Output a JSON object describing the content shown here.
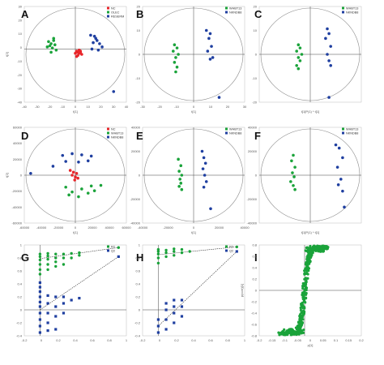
{
  "figure": {
    "layout": "3x3 grid of multivariate plots"
  },
  "colors": {
    "group_red": "#e8262a",
    "group_green": "#1aa33a",
    "group_blue": "#1f3fa0",
    "ellipse": "#888888",
    "axis": "#444444"
  },
  "chart_data": [
    {
      "panel": "A",
      "type": "scatter",
      "ellipse": true,
      "xlim": [
        -40,
        40
      ],
      "ylim": [
        -50,
        40
      ],
      "xticks": [
        "-40",
        "-30",
        "-20",
        "-10",
        "0",
        "10",
        "20",
        "30",
        "40"
      ],
      "yticks": [
        "30",
        "20",
        "10",
        "0",
        "-10",
        "-20",
        "-30",
        "-40"
      ],
      "xlabel": "t[1]",
      "ylabel": "t[2]",
      "legend": [
        {
          "name": "NC",
          "color": "#e8262a"
        },
        {
          "name": "OLEC",
          "color": "#1aa33a"
        },
        {
          "name": "RESERM",
          "color": "#1f3fa0"
        }
      ],
      "series": [
        {
          "name": "NC",
          "color": "#e8262a",
          "x": [
            1,
            2,
            3,
            4,
            5,
            2,
            3,
            0,
            4,
            1
          ],
          "y": [
            -2,
            -3,
            -4,
            -2,
            -5,
            -6,
            -1,
            -4,
            -3,
            -7
          ]
        },
        {
          "name": "OLEC",
          "color": "#1aa33a",
          "x": [
            -21,
            -19,
            -17,
            -20,
            -16,
            -18,
            -15,
            -19,
            -22,
            -17
          ],
          "y": [
            7,
            5,
            8,
            3,
            4,
            1,
            -1,
            -3,
            2,
            10
          ]
        },
        {
          "name": "RESERM",
          "color": "#1f3fa0",
          "x": [
            12,
            15,
            17,
            14,
            19,
            21,
            13,
            18,
            16,
            30
          ],
          "y": [
            13,
            12,
            8,
            6,
            5,
            2,
            0,
            -1,
            10,
            -40
          ]
        }
      ]
    },
    {
      "panel": "B",
      "type": "scatter",
      "ellipse": true,
      "xlim": [
        -40,
        40
      ],
      "ylim": [
        -30,
        30
      ],
      "xticks": [
        "-30",
        "-20",
        "-10",
        "0",
        "10",
        "20",
        "30"
      ],
      "yticks": [
        "20",
        "10",
        "0",
        "-10",
        "-20"
      ],
      "xlabel": "t[1]",
      "ylabel": "",
      "legend": [
        {
          "name": "WHBT13",
          "color": "#1aa33a"
        },
        {
          "name": "NKNDB8",
          "color": "#1f3fa0"
        }
      ],
      "series": [
        {
          "name": "WHBT13",
          "color": "#1aa33a",
          "x": [
            -15,
            -13,
            -16,
            -12,
            -14,
            -15,
            -13,
            -14
          ],
          "y": [
            6,
            4,
            2,
            0,
            -2,
            -5,
            -8,
            -11
          ]
        },
        {
          "name": "NKNDB8",
          "color": "#1f3fa0",
          "x": [
            10,
            13,
            12,
            14,
            11,
            15,
            13,
            20
          ],
          "y": [
            15,
            13,
            10,
            5,
            2,
            -2,
            -3,
            -27
          ]
        }
      ]
    },
    {
      "panel": "C",
      "type": "scatter",
      "ellipse": true,
      "xlim": [
        -30,
        30
      ],
      "ylim": [
        -30,
        30
      ],
      "xticks": [],
      "yticks": [
        "20",
        "10",
        "0",
        "-10",
        "-20"
      ],
      "xlabel": "t[1]P(1) * t[1]",
      "ylabel": "",
      "legend": [
        {
          "name": "WHBT13",
          "color": "#1aa33a"
        },
        {
          "name": "NKNDB8",
          "color": "#1f3fa0"
        }
      ],
      "series": [
        {
          "name": "WHBT13",
          "color": "#1aa33a",
          "x": [
            -7,
            -6,
            -8,
            -5,
            -7,
            -6,
            -8,
            -7
          ],
          "y": [
            6,
            4,
            2,
            0,
            -2,
            -4,
            -7,
            -9
          ]
        },
        {
          "name": "NKNDB8",
          "color": "#1f3fa0",
          "x": [
            10,
            11,
            9,
            12,
            10,
            11,
            12,
            11
          ],
          "y": [
            16,
            13,
            10,
            5,
            0,
            -4,
            -7,
            -27
          ]
        }
      ]
    },
    {
      "panel": "D",
      "type": "scatter",
      "ellipse": true,
      "xlim": [
        -80000,
        80000
      ],
      "ylim": [
        -80000,
        80000
      ],
      "xticks": [
        "-60000",
        "-40000",
        "-20000",
        "0",
        "20000",
        "40000",
        "60000"
      ],
      "yticks": [
        "60000",
        "40000",
        "20000",
        "0",
        "-20000",
        "-40000",
        "-60000"
      ],
      "xlabel": "t[1]",
      "ylabel": "t[2]",
      "legend": [
        {
          "name": "NC",
          "color": "#e8262a"
        },
        {
          "name": "WHBT13",
          "color": "#1aa33a"
        },
        {
          "name": "NKNDB8",
          "color": "#1f3fa0"
        }
      ],
      "series": [
        {
          "name": "NC",
          "color": "#e8262a",
          "x": [
            -8000,
            -3000,
            2000,
            -5000,
            0,
            4000,
            -1000
          ],
          "y": [
            8000,
            5000,
            3000,
            0,
            -3000,
            -5000,
            -8000
          ]
        },
        {
          "name": "WHBT13",
          "color": "#1aa33a",
          "x": [
            -15000,
            -5000,
            10000,
            25000,
            40000,
            20000,
            5000,
            30000,
            -10000
          ],
          "y": [
            -20000,
            -28000,
            -23000,
            -18000,
            -17000,
            -30000,
            -36000,
            -26000,
            -33000
          ]
        },
        {
          "name": "NKNDB8",
          "color": "#1f3fa0",
          "x": [
            -20000,
            -5000,
            10000,
            25000,
            -15000,
            5000,
            20000,
            -35000,
            -70000
          ],
          "y": [
            33000,
            36000,
            34000,
            32000,
            23000,
            22000,
            24000,
            15000,
            3000
          ]
        }
      ]
    },
    {
      "panel": "E",
      "type": "scatter",
      "ellipse": true,
      "xlim": [
        -60000,
        60000
      ],
      "ylim": [
        -60000,
        60000
      ],
      "xticks": [
        "-40000",
        "-20000",
        "0",
        "20000",
        "40000"
      ],
      "yticks": [
        "40000",
        "20000",
        "0",
        "-20000",
        "-40000"
      ],
      "xlabel": "t[1]",
      "ylabel": "",
      "legend": [
        {
          "name": "WHBT13",
          "color": "#1aa33a"
        },
        {
          "name": "NKNDB8",
          "color": "#1f3fa0"
        }
      ],
      "series": [
        {
          "name": "WHBT13",
          "color": "#1aa33a",
          "x": [
            -18000,
            -15000,
            -17000,
            -14000,
            -16000,
            -15000,
            -17000,
            -14000
          ],
          "y": [
            20000,
            12000,
            5000,
            0,
            -5000,
            -10000,
            -14000,
            -18000
          ]
        },
        {
          "name": "NKNDB8",
          "color": "#1f3fa0",
          "x": [
            10000,
            12000,
            14000,
            11000,
            13000,
            15000,
            12000,
            20000
          ],
          "y": [
            30000,
            22000,
            15000,
            8000,
            0,
            -8000,
            -15000,
            -42000
          ]
        }
      ]
    },
    {
      "panel": "F",
      "type": "scatter",
      "ellipse": true,
      "xlim": [
        -60000,
        60000
      ],
      "ylim": [
        -60000,
        60000
      ],
      "xticks": [],
      "yticks": [
        "40000",
        "20000",
        "0",
        "-20000",
        "-40000"
      ],
      "xlabel": "t[1]P(1) * t[1]",
      "ylabel": "",
      "legend": [
        {
          "name": "WHBT13",
          "color": "#1aa33a"
        },
        {
          "name": "NKNDB8",
          "color": "#1f3fa0"
        }
      ],
      "series": [
        {
          "name": "WHBT13",
          "color": "#1aa33a",
          "x": [
            -20000,
            -22000,
            -18000,
            -21000,
            -19000,
            -23000,
            -20000,
            -18000
          ],
          "y": [
            25000,
            18000,
            10000,
            3000,
            -2000,
            -8000,
            -13000,
            -18000
          ]
        },
        {
          "name": "NKNDB8",
          "color": "#1f3fa0",
          "x": [
            30000,
            34000,
            38000,
            32000,
            36000,
            33000,
            38000,
            40000
          ],
          "y": [
            38000,
            34000,
            22000,
            10000,
            -5000,
            -12000,
            -20000,
            -40000
          ]
        }
      ]
    },
    {
      "panel": "G",
      "type": "scatter",
      "subtype": "permutation",
      "xlim": [
        -0.2,
        1.1
      ],
      "ylim": [
        -0.4,
        1.0
      ],
      "xticks": [
        "-0.2",
        "0",
        "0.2",
        "0.4",
        "0.6",
        "0.8",
        "1"
      ],
      "yticks": [
        "1",
        "0.8",
        "0.6",
        "0.4",
        "0.2",
        "0",
        "-0.2",
        "-0.4"
      ],
      "legend": [
        {
          "name": "R2",
          "color": "#1aa33a"
        },
        {
          "name": "Q2",
          "color": "#1f3fa0"
        }
      ],
      "series": [
        {
          "name": "R2",
          "color": "#1aa33a",
          "x": [
            0,
            0,
            0,
            0,
            0,
            0,
            0.1,
            0.1,
            0.1,
            0.1,
            0.1,
            0.2,
            0.2,
            0.2,
            0.2,
            0.3,
            0.3,
            0.3,
            0.4,
            0.4,
            0.5,
            0.5,
            1
          ],
          "y": [
            0.55,
            0.62,
            0.7,
            0.77,
            0.82,
            0.86,
            0.62,
            0.7,
            0.78,
            0.83,
            0.87,
            0.67,
            0.74,
            0.8,
            0.86,
            0.7,
            0.8,
            0.86,
            0.8,
            0.87,
            0.84,
            0.88,
            0.96
          ]
        },
        {
          "name": "Q2",
          "color": "#1f3fa0",
          "x": [
            0,
            0,
            0,
            0,
            0,
            0,
            0,
            0,
            0,
            0,
            0.1,
            0.1,
            0.1,
            0.1,
            0.1,
            0.2,
            0.2,
            0.2,
            0.2,
            0.3,
            0.3,
            0.3,
            0.4,
            0.5,
            1
          ],
          "y": [
            -0.35,
            -0.25,
            -0.15,
            -0.05,
            0.05,
            0.12,
            0.2,
            0.28,
            0.35,
            0.42,
            -0.32,
            -0.2,
            -0.05,
            0.1,
            0.22,
            -0.3,
            -0.1,
            0.05,
            0.2,
            -0.05,
            0.1,
            0.2,
            0.15,
            0.18,
            0.82
          ]
        }
      ],
      "regression_lines": [
        {
          "name": "R2",
          "x": [
            0,
            1
          ],
          "y": [
            0.79,
            0.96
          ]
        },
        {
          "name": "Q2",
          "x": [
            0,
            1
          ],
          "y": [
            0.0,
            0.82
          ]
        }
      ]
    },
    {
      "panel": "H",
      "type": "scatter",
      "subtype": "permutation",
      "xlim": [
        -0.2,
        1.1
      ],
      "ylim": [
        -0.4,
        1.0
      ],
      "xticks": [
        "-0.2",
        "0",
        "0.2",
        "0.4",
        "0.6",
        "0.8",
        "1"
      ],
      "yticks": [
        "1",
        "0.8",
        "0.6",
        "0.4",
        "0.2",
        "0",
        "-0.2",
        "-0.4"
      ],
      "legend": [
        {
          "name": "R2",
          "color": "#1aa33a"
        },
        {
          "name": "Q2",
          "color": "#1f3fa0"
        }
      ],
      "series": [
        {
          "name": "R2",
          "color": "#1aa33a",
          "x": [
            0,
            0,
            0,
            0,
            0,
            0.1,
            0.1,
            0.1,
            0.2,
            0.2,
            0.2,
            0.3,
            0.3,
            0.4,
            1
          ],
          "y": [
            0.72,
            0.8,
            0.86,
            0.9,
            0.93,
            0.82,
            0.88,
            0.92,
            0.84,
            0.9,
            0.94,
            0.88,
            0.93,
            0.9,
            0.97
          ]
        },
        {
          "name": "Q2",
          "color": "#1f3fa0",
          "x": [
            0,
            0,
            0,
            0.1,
            0.1,
            0.1,
            0.1,
            0.2,
            0.2,
            0.2,
            0.2,
            0.3,
            0.3,
            0.3,
            1
          ],
          "y": [
            -0.35,
            -0.25,
            -0.15,
            -0.3,
            -0.15,
            0.0,
            0.1,
            -0.2,
            -0.05,
            0.05,
            0.15,
            -0.1,
            0.05,
            0.15,
            0.9
          ]
        }
      ],
      "regression_lines": [
        {
          "name": "R2",
          "x": [
            0,
            1
          ],
          "y": [
            0.85,
            0.97
          ]
        },
        {
          "name": "Q2",
          "x": [
            0,
            1
          ],
          "y": [
            -0.25,
            0.9
          ]
        }
      ]
    },
    {
      "panel": "I",
      "type": "scatter",
      "subtype": "s-plot",
      "xlim": [
        -0.2,
        0.25
      ],
      "ylim": [
        -1.0,
        1.0
      ],
      "xticks": [
        "-0.2",
        "-0.15",
        "-0.1",
        "-0.05",
        "0",
        "0.05",
        "0.1",
        "0.15",
        "0.2"
      ],
      "yticks": [
        "0.8",
        "0.6",
        "0.4",
        "0.2",
        "0",
        "-0.2",
        "-0.4",
        "-0.6",
        "-0.8"
      ],
      "xlabel": "p[1]",
      "ylabel": "p(corr)[1]",
      "color": "#1aa33a"
    }
  ]
}
